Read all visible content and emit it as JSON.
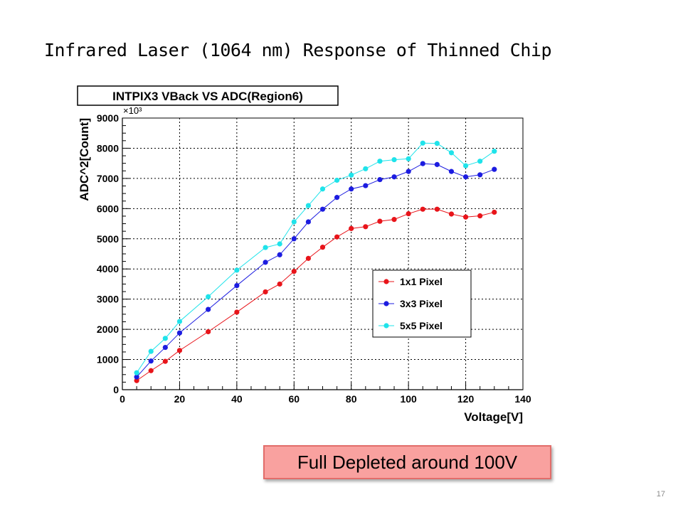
{
  "slide": {
    "title": "Infrared Laser (1064 nm) Response of Thinned Chip",
    "callout": "Full Depleted around 100V",
    "page_number": "17"
  },
  "chart_data": {
    "type": "line",
    "title": "INTPIX3 VBack VS ADC(Region6)",
    "xlabel": "Voltage[V]",
    "ylabel": "ADC^2[Count]",
    "y_multiplier_label": "×10³",
    "xlim": [
      0,
      140
    ],
    "ylim": [
      0,
      9000
    ],
    "x_ticks": [
      0,
      20,
      40,
      60,
      80,
      100,
      120,
      140
    ],
    "y_ticks": [
      0,
      1000,
      2000,
      3000,
      4000,
      5000,
      6000,
      7000,
      8000,
      9000
    ],
    "grid": true,
    "legend_position": "lower-right",
    "series": [
      {
        "name": "1x1 Pixel",
        "color": "#e8141a",
        "points": [
          [
            5,
            300
          ],
          [
            10,
            630
          ],
          [
            15,
            940
          ],
          [
            20,
            1300
          ],
          [
            30,
            1920
          ],
          [
            40,
            2570
          ],
          [
            50,
            3240
          ],
          [
            55,
            3500
          ],
          [
            60,
            3920
          ],
          [
            65,
            4350
          ],
          [
            70,
            4720
          ],
          [
            75,
            5060
          ],
          [
            80,
            5340
          ],
          [
            85,
            5400
          ],
          [
            90,
            5580
          ],
          [
            95,
            5640
          ],
          [
            100,
            5830
          ],
          [
            105,
            5980
          ],
          [
            110,
            5980
          ],
          [
            115,
            5820
          ],
          [
            120,
            5720
          ],
          [
            125,
            5760
          ],
          [
            130,
            5880
          ]
        ]
      },
      {
        "name": "3x3 Pixel",
        "color": "#1c1ce0",
        "points": [
          [
            5,
            420
          ],
          [
            10,
            950
          ],
          [
            15,
            1400
          ],
          [
            20,
            1880
          ],
          [
            30,
            2660
          ],
          [
            40,
            3450
          ],
          [
            50,
            4220
          ],
          [
            55,
            4470
          ],
          [
            60,
            5000
          ],
          [
            65,
            5560
          ],
          [
            70,
            5980
          ],
          [
            75,
            6370
          ],
          [
            80,
            6650
          ],
          [
            85,
            6760
          ],
          [
            90,
            6960
          ],
          [
            95,
            7050
          ],
          [
            100,
            7230
          ],
          [
            105,
            7490
          ],
          [
            110,
            7460
          ],
          [
            115,
            7230
          ],
          [
            120,
            7050
          ],
          [
            125,
            7120
          ],
          [
            130,
            7300
          ]
        ]
      },
      {
        "name": "5x5 Pixel",
        "color": "#1fe3ea",
        "points": [
          [
            5,
            560
          ],
          [
            10,
            1270
          ],
          [
            15,
            1700
          ],
          [
            20,
            2260
          ],
          [
            30,
            3080
          ],
          [
            40,
            3960
          ],
          [
            50,
            4710
          ],
          [
            55,
            4830
          ],
          [
            60,
            5560
          ],
          [
            65,
            6100
          ],
          [
            70,
            6650
          ],
          [
            75,
            6940
          ],
          [
            80,
            7110
          ],
          [
            85,
            7320
          ],
          [
            90,
            7570
          ],
          [
            95,
            7620
          ],
          [
            100,
            7650
          ],
          [
            105,
            8170
          ],
          [
            110,
            8160
          ],
          [
            115,
            7850
          ],
          [
            120,
            7420
          ],
          [
            125,
            7570
          ],
          [
            130,
            7900
          ]
        ]
      }
    ]
  }
}
